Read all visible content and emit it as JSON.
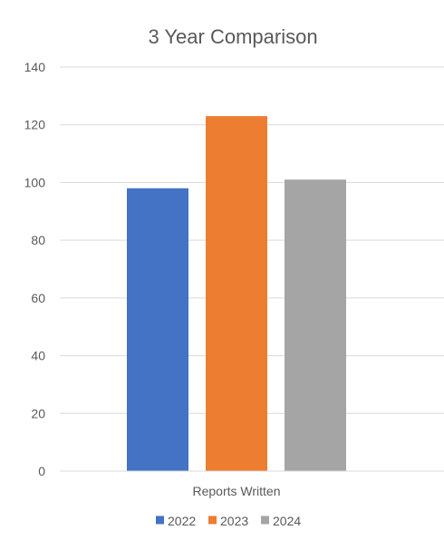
{
  "chart_data": {
    "type": "bar",
    "title": "3 Year Comparison",
    "categories": [
      "Reports Written"
    ],
    "series": [
      {
        "name": "2022",
        "values": [
          98
        ],
        "color": "#4472c4"
      },
      {
        "name": "2023",
        "values": [
          123
        ],
        "color": "#ed7d31"
      },
      {
        "name": "2024",
        "values": [
          101
        ],
        "color": "#a5a5a5"
      }
    ],
    "ylim": [
      0,
      140
    ],
    "yticks": [
      "0",
      "20",
      "40",
      "60",
      "80",
      "100",
      "120",
      "140"
    ],
    "grid": true,
    "legend_position": "bottom"
  }
}
